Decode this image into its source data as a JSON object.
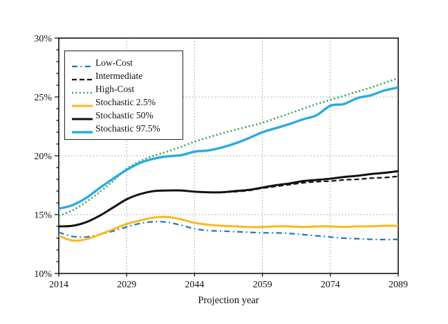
{
  "figure": {
    "x_axis_title": "Projection year"
  },
  "chart_data": {
    "type": "line",
    "title": "",
    "xlabel": "Projection year",
    "ylabel": "",
    "xlim": [
      2014,
      2089
    ],
    "ylim": [
      10,
      30
    ],
    "x_ticks": [
      2014,
      2029,
      2044,
      2059,
      2074,
      2089
    ],
    "y_ticks": [
      10,
      15,
      20,
      25,
      30
    ],
    "y_minor_tick_step": 1,
    "y_tick_suffix": "%",
    "grid": "dotted, at interior major ticks",
    "legend_position": "upper-left",
    "x": [
      2014,
      2017,
      2020,
      2023,
      2026,
      2029,
      2032,
      2035,
      2038,
      2041,
      2044,
      2047,
      2050,
      2053,
      2056,
      2059,
      2062,
      2065,
      2068,
      2071,
      2074,
      2077,
      2080,
      2083,
      2086,
      2089
    ],
    "series": [
      {
        "name": "Low-Cost",
        "color": "#1C75BC",
        "style": "dash-dot",
        "width": 2.2,
        "values": [
          13.5,
          13.15,
          13.1,
          13.3,
          13.6,
          13.95,
          14.25,
          14.4,
          14.35,
          14.1,
          13.8,
          13.65,
          13.6,
          13.55,
          13.5,
          13.45,
          13.45,
          13.4,
          13.3,
          13.2,
          13.1,
          13.0,
          12.95,
          12.9,
          12.88,
          12.9
        ]
      },
      {
        "name": "Intermediate",
        "color": "#111111",
        "style": "dashed",
        "width": 2.2,
        "values": [
          14.0,
          14.05,
          14.35,
          14.9,
          15.6,
          16.3,
          16.75,
          17.0,
          17.05,
          17.05,
          16.95,
          16.9,
          16.9,
          16.95,
          17.05,
          17.25,
          17.4,
          17.55,
          17.7,
          17.8,
          17.85,
          17.95,
          18.0,
          18.1,
          18.15,
          18.25
        ]
      },
      {
        "name": "High-Cost",
        "color": "#2EA152",
        "style": "dotted",
        "width": 2.6,
        "values": [
          14.9,
          15.35,
          16.05,
          16.9,
          17.85,
          18.9,
          19.55,
          20.0,
          20.35,
          20.75,
          21.2,
          21.55,
          21.9,
          22.2,
          22.5,
          22.8,
          23.2,
          23.6,
          24.0,
          24.4,
          24.75,
          25.1,
          25.45,
          25.8,
          26.2,
          26.6
        ]
      },
      {
        "name": "Stochastic 2.5%",
        "color": "#FCB81B",
        "style": "solid",
        "width": 3.0,
        "values": [
          13.2,
          12.8,
          12.9,
          13.3,
          13.75,
          14.2,
          14.5,
          14.75,
          14.8,
          14.6,
          14.3,
          14.15,
          14.05,
          14.0,
          13.95,
          13.95,
          14.0,
          14.0,
          13.95,
          14.0,
          14.0,
          13.95,
          14.0,
          14.0,
          14.05,
          14.05
        ]
      },
      {
        "name": "Stochastic 50%",
        "color": "#111111",
        "style": "solid",
        "width": 3.0,
        "values": [
          14.0,
          14.05,
          14.35,
          14.9,
          15.6,
          16.3,
          16.75,
          17.0,
          17.05,
          17.05,
          16.95,
          16.9,
          16.9,
          17.0,
          17.1,
          17.3,
          17.5,
          17.65,
          17.85,
          17.95,
          18.05,
          18.2,
          18.3,
          18.45,
          18.55,
          18.7
        ]
      },
      {
        "name": "Stochastic 97.5%",
        "color": "#29ABE2",
        "style": "solid",
        "width": 3.4,
        "values": [
          15.5,
          15.8,
          16.4,
          17.25,
          18.05,
          18.8,
          19.4,
          19.75,
          19.95,
          20.05,
          20.35,
          20.45,
          20.7,
          21.05,
          21.5,
          22.0,
          22.35,
          22.7,
          23.1,
          23.45,
          24.25,
          24.4,
          24.9,
          25.15,
          25.55,
          25.8
        ]
      }
    ]
  }
}
